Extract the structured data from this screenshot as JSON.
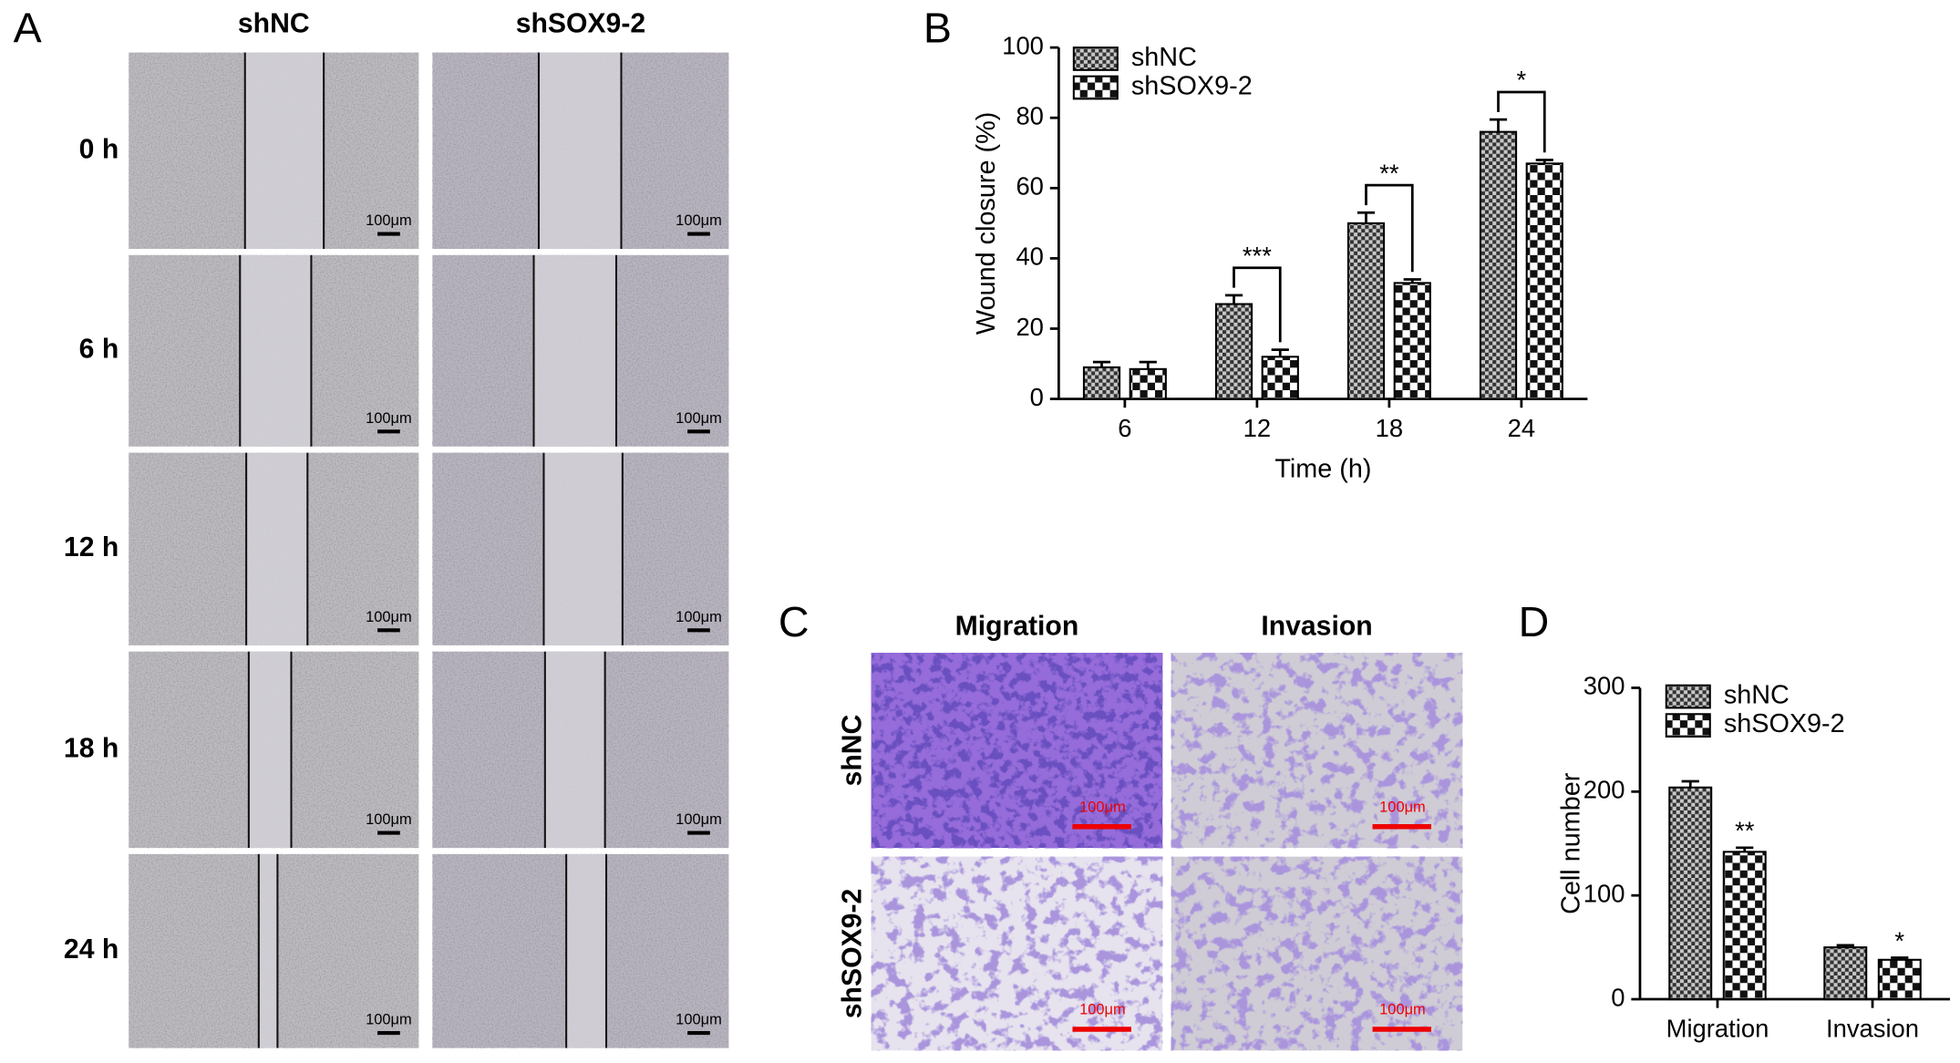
{
  "panel_labels": {
    "a": "A",
    "b": "B",
    "c": "C",
    "d": "D"
  },
  "wound_healing_images": {
    "columns": [
      "shNC",
      "shSOX9-2"
    ],
    "rows": [
      "0 h",
      "6 h",
      "12 h",
      "18 h",
      "24 h"
    ],
    "scale_bar": "100μm"
  },
  "transwell_images": {
    "columns": [
      "Migration",
      "Invasion"
    ],
    "rows": [
      "shNC",
      "shSOX9-2"
    ],
    "scale_bar": "100μm"
  },
  "chart_data": [
    {
      "type": "bar",
      "xlabel": "Time (h)",
      "ylabel": "Wound closure (%)",
      "categories": [
        "6",
        "12",
        "18",
        "24"
      ],
      "series": [
        {
          "name": "shNC",
          "pattern": "fine-check",
          "values": [
            9,
            27,
            50,
            76
          ],
          "errors": [
            1.5,
            2.5,
            3,
            3.5
          ]
        },
        {
          "name": "shSOX9-2",
          "pattern": "coarse-check",
          "values": [
            8.5,
            12,
            33,
            67
          ],
          "errors": [
            2,
            2,
            1,
            1
          ]
        }
      ],
      "ylim": [
        0,
        100
      ],
      "yticks": [
        0,
        20,
        40,
        60,
        80,
        100
      ],
      "legend": "upper left",
      "significance": [
        null,
        "***",
        "**",
        "*"
      ],
      "significance_style": "bracket"
    },
    {
      "type": "bar",
      "ylabel": "Cell number",
      "categories": [
        "Migration",
        "Invasion"
      ],
      "series": [
        {
          "name": "shNC",
          "pattern": "fine-check",
          "values": [
            204,
            50
          ],
          "errors": [
            6,
            2
          ]
        },
        {
          "name": "shSOX9-2",
          "pattern": "coarse-check",
          "values": [
            142,
            38
          ],
          "errors": [
            4,
            2
          ]
        }
      ],
      "ylim": [
        0,
        300
      ],
      "yticks": [
        0,
        100,
        200,
        300
      ],
      "legend": "upper left",
      "significance": [
        "**",
        "*"
      ],
      "significance_style": "above-second"
    }
  ]
}
